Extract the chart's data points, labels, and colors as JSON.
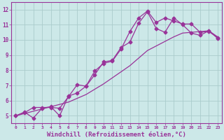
{
  "background_color": "#cce8e8",
  "grid_color": "#aacccc",
  "line_color": "#993399",
  "marker": "D",
  "marker_size": 2.5,
  "line_width": 0.9,
  "xlim": [
    -0.5,
    23.5
  ],
  "ylim": [
    4.5,
    12.5
  ],
  "xlabel": "Windchill (Refroidissement éolien,°C)",
  "xlabel_fontsize": 6.5,
  "xtick_labels": [
    "0",
    "1",
    "2",
    "3",
    "4",
    "5",
    "6",
    "7",
    "8",
    "9",
    "10",
    "11",
    "12",
    "13",
    "14",
    "15",
    "16",
    "17",
    "18",
    "19",
    "20",
    "21",
    "22",
    "23"
  ],
  "ytick_labels": [
    "5",
    "6",
    "7",
    "8",
    "9",
    "10",
    "11",
    "12"
  ],
  "yticks": [
    5,
    6,
    7,
    8,
    9,
    10,
    11,
    12
  ],
  "line1_x": [
    0,
    1,
    2,
    3,
    4,
    5,
    6,
    7,
    8,
    9,
    10,
    11,
    12,
    13,
    14,
    15,
    16,
    17,
    18,
    19,
    20,
    21,
    22,
    23
  ],
  "line1_y": [
    5.0,
    5.25,
    4.85,
    5.5,
    5.6,
    5.0,
    6.3,
    6.5,
    6.95,
    7.7,
    8.55,
    8.65,
    9.5,
    9.85,
    11.1,
    11.85,
    10.75,
    10.5,
    11.45,
    11.0,
    10.45,
    10.3,
    10.6,
    10.1
  ],
  "line2_x": [
    0,
    1,
    2,
    3,
    4,
    5,
    6,
    7,
    8,
    9,
    10,
    11,
    12,
    13,
    14,
    15,
    16,
    17,
    18,
    19,
    20,
    21,
    22,
    23
  ],
  "line2_y": [
    5.0,
    5.2,
    5.55,
    5.55,
    5.55,
    5.5,
    6.25,
    7.05,
    6.95,
    7.95,
    8.45,
    8.6,
    9.4,
    10.55,
    11.45,
    11.9,
    11.15,
    11.45,
    11.25,
    11.05,
    11.05,
    10.5,
    10.55,
    10.15
  ],
  "line3_x": [
    0,
    1,
    2,
    3,
    4,
    5,
    6,
    7,
    8,
    9,
    10,
    11,
    12,
    13,
    14,
    15,
    16,
    17,
    18,
    19,
    20,
    21,
    22,
    23
  ],
  "line3_y": [
    5.0,
    5.15,
    5.3,
    5.45,
    5.6,
    5.75,
    5.9,
    6.15,
    6.4,
    6.75,
    7.1,
    7.5,
    7.9,
    8.3,
    8.8,
    9.3,
    9.6,
    9.9,
    10.2,
    10.45,
    10.5,
    10.55,
    10.6,
    10.2
  ]
}
